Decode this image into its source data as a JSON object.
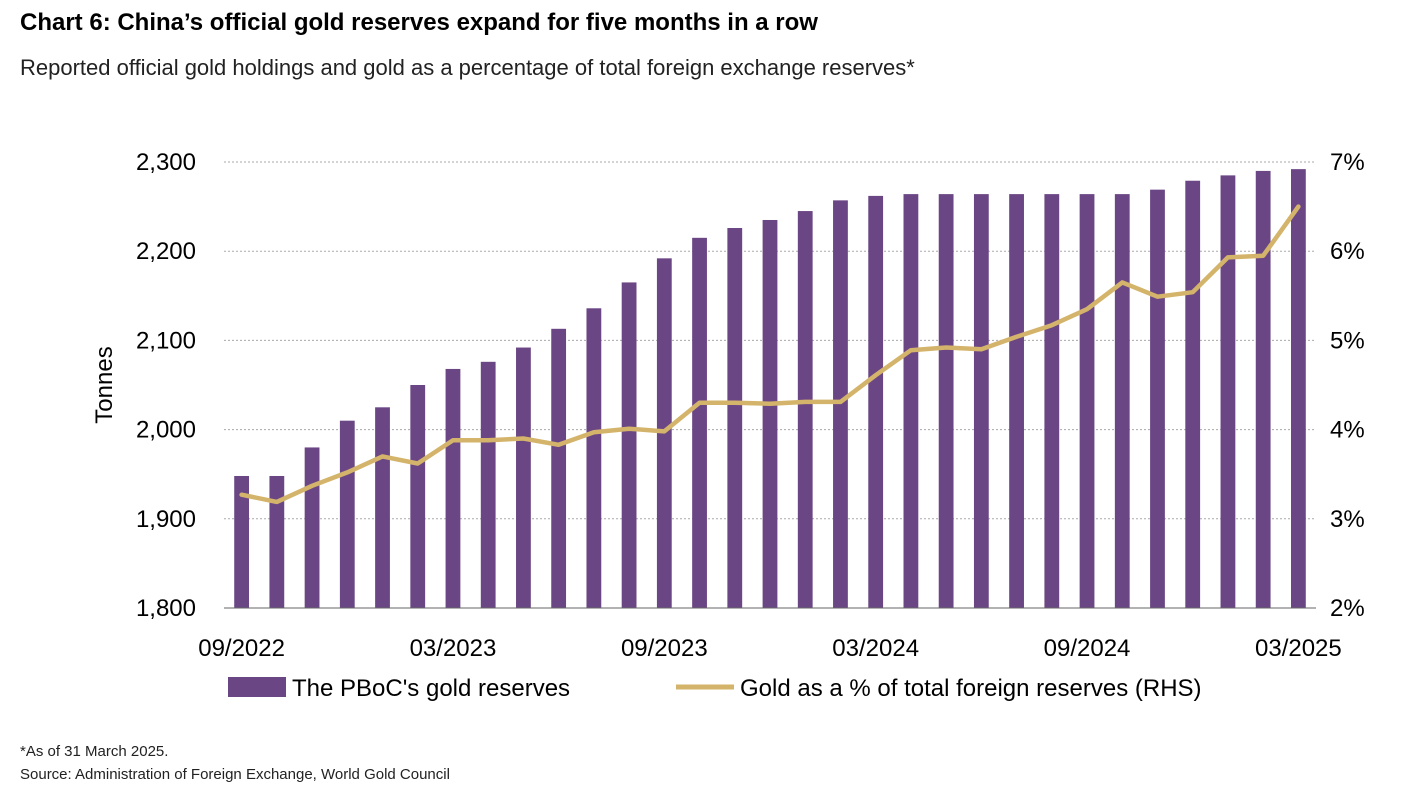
{
  "title": "Chart 6: China’s official gold reserves expand for five months in a row",
  "subtitle": "Reported official gold holdings and gold as a percentage of total foreign exchange reserves*",
  "footnote": "*As of 31 March 2025.",
  "source": "Source: Administration of Foreign Exchange, World Gold Council",
  "colors": {
    "bars": "#6b4685",
    "line": "#d4b46a",
    "grid": "#aaaaaa"
  },
  "chart_data": {
    "type": "bar",
    "periods": [
      "09/2022",
      "10/2022",
      "11/2022",
      "12/2022",
      "01/2023",
      "02/2023",
      "03/2023",
      "04/2023",
      "05/2023",
      "06/2023",
      "07/2023",
      "08/2023",
      "09/2023",
      "10/2023",
      "11/2023",
      "12/2023",
      "01/2024",
      "02/2024",
      "03/2024",
      "04/2024",
      "05/2024",
      "06/2024",
      "07/2024",
      "08/2024",
      "09/2024",
      "10/2024",
      "11/2024",
      "12/2024",
      "01/2025",
      "02/2025",
      "03/2025"
    ],
    "x_tick_labels": [
      "09/2022",
      "03/2023",
      "09/2023",
      "03/2024",
      "09/2024",
      "03/2025"
    ],
    "ylabel": "Tonnes",
    "ylim": [
      1800,
      2300
    ],
    "y_ticks": [
      "1,800",
      "1,900",
      "2,000",
      "2,100",
      "2,200",
      "2,300"
    ],
    "y2lim": [
      2,
      7
    ],
    "y2_ticks": [
      "2%",
      "3%",
      "4%",
      "5%",
      "6%",
      "7%"
    ],
    "grid": true,
    "legend_position": "bottom",
    "series": [
      {
        "name": "The PBoC's gold reserves",
        "type": "bar",
        "axis": "left",
        "values": [
          1948,
          1948,
          1980,
          2010,
          2025,
          2050,
          2068,
          2076,
          2092,
          2113,
          2136,
          2165,
          2192,
          2215,
          2226,
          2235,
          2245,
          2257,
          2262,
          2264,
          2264,
          2264,
          2264,
          2264,
          2264,
          2264,
          2269,
          2279,
          2285,
          2290,
          2292
        ]
      },
      {
        "name": "Gold as a % of total foreign reserves (RHS)",
        "type": "line",
        "axis": "right",
        "values": [
          3.27,
          3.19,
          3.37,
          3.52,
          3.7,
          3.62,
          3.88,
          3.88,
          3.9,
          3.83,
          3.97,
          4.01,
          3.98,
          4.3,
          4.3,
          4.29,
          4.31,
          4.31,
          4.61,
          4.89,
          4.92,
          4.9,
          5.04,
          5.17,
          5.35,
          5.65,
          5.49,
          5.54,
          5.93,
          5.95,
          6.5
        ]
      }
    ]
  }
}
